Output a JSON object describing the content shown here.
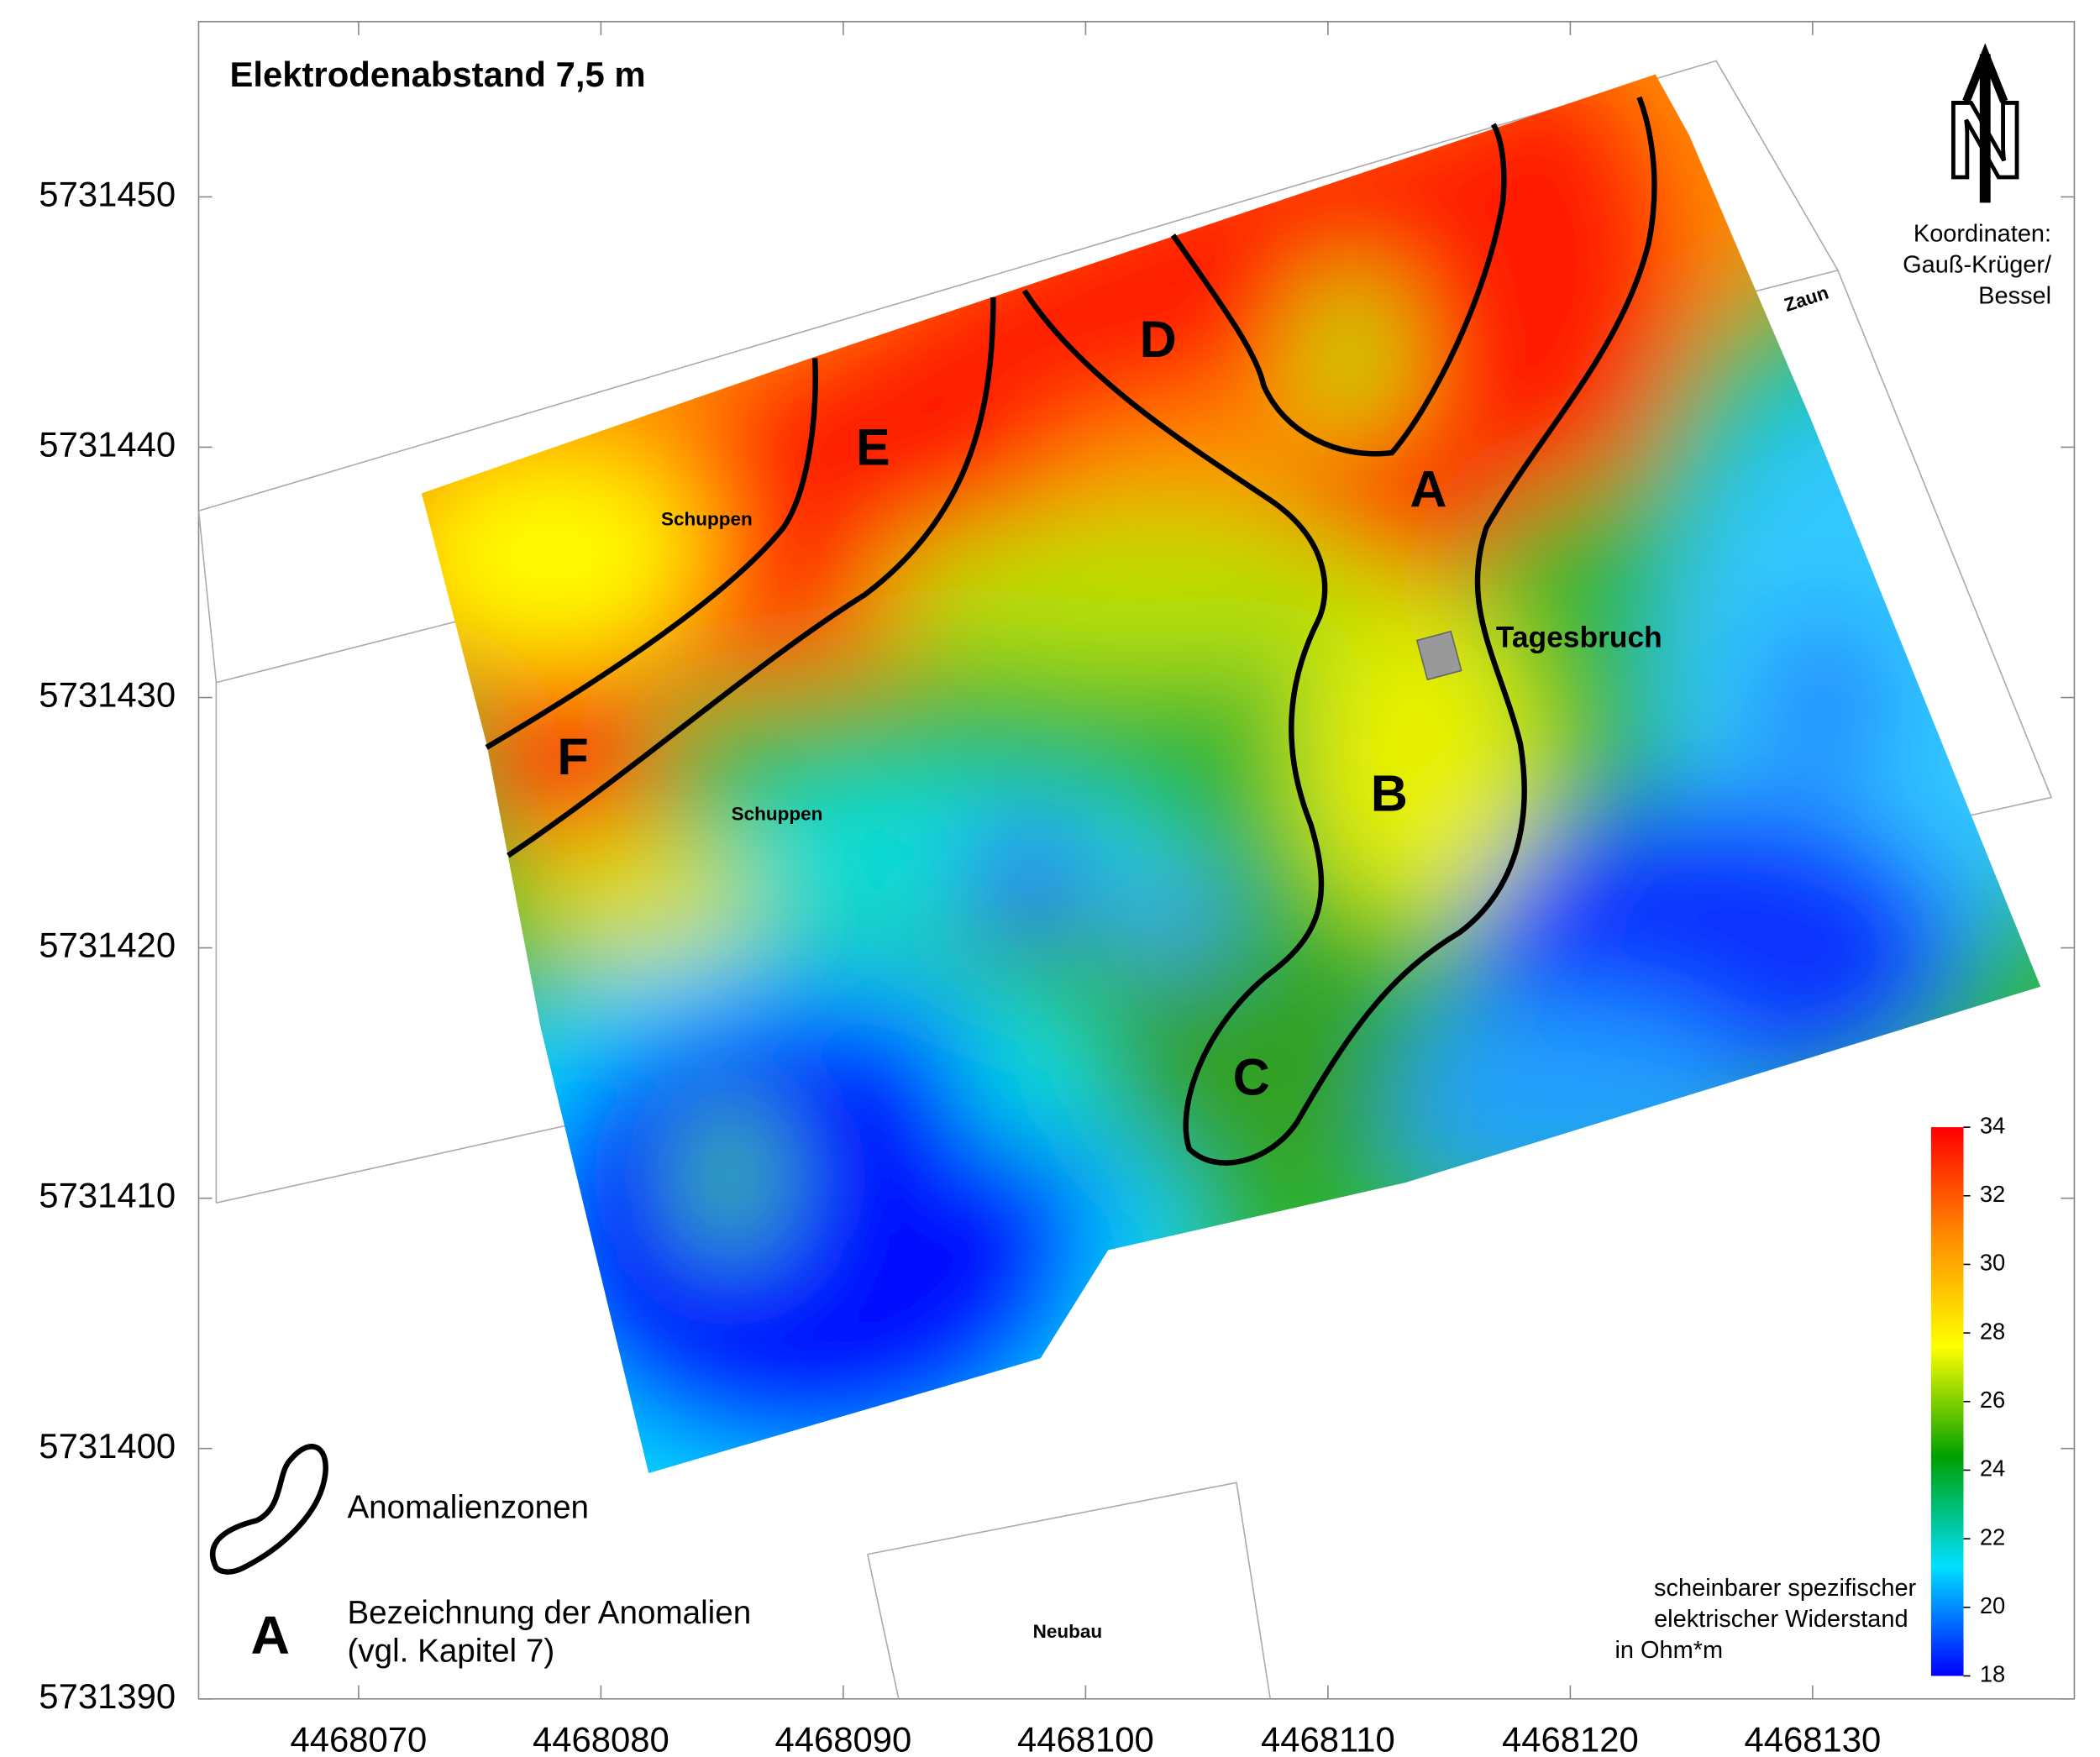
{
  "map": {
    "title": "Elektrodenabstand 7,5 m",
    "xlim": [
      4468063.4,
      4468140.8
    ],
    "ylim": [
      5731390,
      5731457
    ],
    "xticks": [
      4468070,
      4468080,
      4468090,
      4468100,
      4468110,
      4468120,
      4468130
    ],
    "yticks": [
      5731390,
      5731400,
      5731410,
      5731420,
      5731430,
      5731440,
      5731450
    ],
    "anomalies": [
      "A",
      "B",
      "C",
      "D",
      "E",
      "F"
    ],
    "places": {
      "shed1": "Schuppen",
      "shed2": "Schuppen",
      "new_building": "Neubau",
      "fence": "Zaun",
      "sinkhole": "Tagesbruch"
    },
    "north": "N",
    "coordinates_note": [
      "Koordinaten:",
      "Gauß-Krüger/",
      "Bessel"
    ],
    "legend": {
      "zones": "Anomalienzonen",
      "letter": "A",
      "letter_text": [
        "Bezeichnung der Anomalien",
        "(vgl. Kapitel 7)"
      ]
    },
    "colorbar": {
      "lim": [
        18,
        34
      ],
      "ticks": [
        18,
        20,
        22,
        24,
        26,
        28,
        30,
        32,
        34
      ],
      "colors": [
        "#0000ff",
        "#00e0ff",
        "#00a000",
        "#ffff00",
        "#ff8c00",
        "#ff0000"
      ],
      "title": [
        "scheinbarer spezifischer",
        "elektrischer Widerstand",
        "in Ohm*m"
      ]
    }
  }
}
